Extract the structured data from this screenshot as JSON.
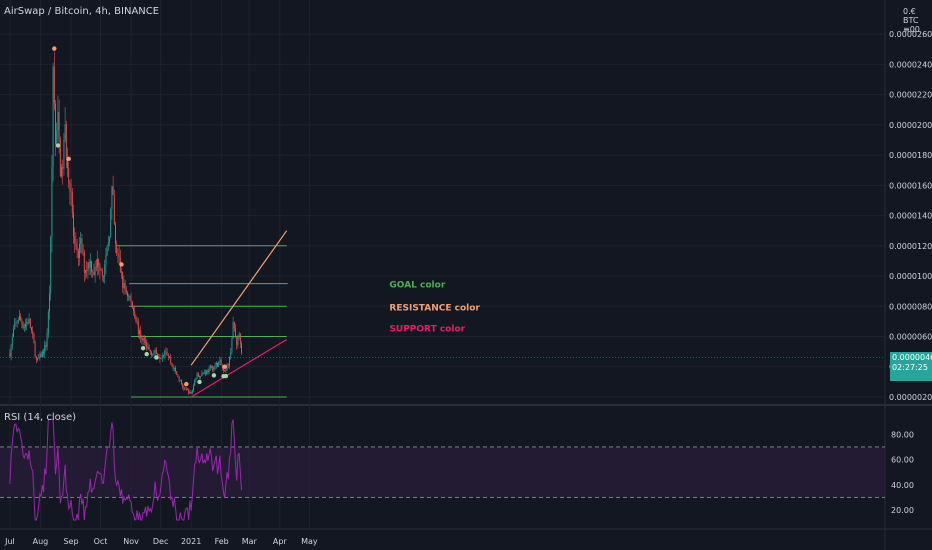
{
  "header": {
    "title": "AirSwap / Bitcoin, 4h, BINANCE",
    "currency": "0.€ BTC ≡00"
  },
  "rsi_panel": {
    "title": "RSI (14, close)"
  },
  "price_box": {
    "price": "0.00000461",
    "countdown": "02:27:25"
  },
  "colors": {
    "background": "#131722",
    "bull": "#26a69a",
    "bear": "#ef5350",
    "goal": "#4caf50",
    "resistance": "#f0a070",
    "support": "#e91e63",
    "rsi": "#9c27b0",
    "rsi_band": "#2a1e3a"
  },
  "chart_data": [
    {
      "type": "candlestick",
      "title": "AirSwap / Bitcoin, 4h, BINANCE",
      "x_tick_labels": [
        "Jul",
        "Aug",
        "Sep",
        "Oct",
        "Nov",
        "Dec",
        "2021",
        "Feb",
        "Mar",
        "Apr",
        "May"
      ],
      "y_tick_labels": [
        "0.00000200",
        "0.00000400",
        "0.00000600",
        "0.00000800",
        "0.00001000",
        "0.00001200",
        "0.00001400",
        "0.00001600",
        "0.00001800",
        "0.00002000",
        "0.00002200",
        "0.00002400",
        "0.00002600"
      ],
      "ylim": [
        1.6e-06,
        2.76e-05
      ],
      "last_price": 4.61e-06,
      "price_path": [
        {
          "x": "2020-07-01",
          "y": 4.9e-06
        },
        {
          "x": "2020-07-05",
          "y": 6.5e-06
        },
        {
          "x": "2020-07-10",
          "y": 7.3e-06
        },
        {
          "x": "2020-07-15",
          "y": 6.7e-06
        },
        {
          "x": "2020-07-20",
          "y": 7.1e-06
        },
        {
          "x": "2020-07-24",
          "y": 6e-06
        },
        {
          "x": "2020-07-28",
          "y": 4.3e-06
        },
        {
          "x": "2020-08-03",
          "y": 4.9e-06
        },
        {
          "x": "2020-08-07",
          "y": 5.5e-06
        },
        {
          "x": "2020-08-10",
          "y": 8.5e-06
        },
        {
          "x": "2020-08-12",
          "y": 1.35e-05
        },
        {
          "x": "2020-08-14",
          "y": 2.48e-05
        },
        {
          "x": "2020-08-16",
          "y": 1.85e-05
        },
        {
          "x": "2020-08-19",
          "y": 2.02e-05
        },
        {
          "x": "2020-08-22",
          "y": 1.62e-05
        },
        {
          "x": "2020-08-26",
          "y": 1.95e-05
        },
        {
          "x": "2020-08-29",
          "y": 1.71e-05
        },
        {
          "x": "2020-09-01",
          "y": 1.58e-05
        },
        {
          "x": "2020-09-04",
          "y": 1.2e-05
        },
        {
          "x": "2020-09-07",
          "y": 1.12e-05
        },
        {
          "x": "2020-09-11",
          "y": 1.21e-05
        },
        {
          "x": "2020-09-15",
          "y": 1.04e-05
        },
        {
          "x": "2020-09-20",
          "y": 1.1e-05
        },
        {
          "x": "2020-09-25",
          "y": 1.02e-05
        },
        {
          "x": "2020-09-29",
          "y": 1.11e-05
        },
        {
          "x": "2020-10-03",
          "y": 1.03e-05
        },
        {
          "x": "2020-10-06",
          "y": 1.06e-05
        },
        {
          "x": "2020-10-10",
          "y": 1.3e-05
        },
        {
          "x": "2020-10-13",
          "y": 1.58e-05
        },
        {
          "x": "2020-10-16",
          "y": 1.19e-05
        },
        {
          "x": "2020-10-20",
          "y": 1.09e-05
        },
        {
          "x": "2020-10-24",
          "y": 9.3e-06
        },
        {
          "x": "2020-10-28",
          "y": 8.9e-06
        },
        {
          "x": "2020-11-01",
          "y": 8.2e-06
        },
        {
          "x": "2020-11-05",
          "y": 7.5e-06
        },
        {
          "x": "2020-11-09",
          "y": 6.2e-06
        },
        {
          "x": "2020-11-14",
          "y": 5.7e-06
        },
        {
          "x": "2020-11-20",
          "y": 5e-06
        },
        {
          "x": "2020-11-26",
          "y": 4.9e-06
        },
        {
          "x": "2020-12-01",
          "y": 4.7e-06
        },
        {
          "x": "2020-12-06",
          "y": 5.2e-06
        },
        {
          "x": "2020-12-12",
          "y": 4.2e-06
        },
        {
          "x": "2020-12-18",
          "y": 3.4e-06
        },
        {
          "x": "2020-12-24",
          "y": 2.6e-06
        },
        {
          "x": "2021-01-01",
          "y": 2.2e-06
        },
        {
          "x": "2021-01-06",
          "y": 3.4e-06
        },
        {
          "x": "2021-01-14",
          "y": 3.6e-06
        },
        {
          "x": "2021-01-22",
          "y": 3.9e-06
        },
        {
          "x": "2021-01-30",
          "y": 4.3e-06
        },
        {
          "x": "2021-02-04",
          "y": 3.5e-06
        },
        {
          "x": "2021-02-09",
          "y": 4.5e-06
        },
        {
          "x": "2021-02-13",
          "y": 6.9e-06
        },
        {
          "x": "2021-02-16",
          "y": 5.5e-06
        },
        {
          "x": "2021-02-19",
          "y": 6.3e-06
        },
        {
          "x": "2021-02-22",
          "y": 4.6e-06
        }
      ],
      "horizontal_lines": [
        {
          "y": 1.2e-05,
          "x0": "2020-10-18",
          "x1": "2021-04-08"
        },
        {
          "y": 9.5e-06,
          "x0": "2020-10-30",
          "x1": "2021-04-09"
        },
        {
          "y": 8e-06,
          "x0": "2020-10-30",
          "x1": "2021-04-08"
        },
        {
          "y": 6e-06,
          "x0": "2020-11-01",
          "x1": "2021-04-08"
        },
        {
          "y": 2e-06,
          "x0": "2020-11-01",
          "x1": "2021-04-08"
        }
      ],
      "trend_lines": [
        {
          "name": "RESISTANCE",
          "x0": "2021-01-01",
          "y0": 4.1e-06,
          "x1": "2021-04-08",
          "y1": 1.3e-05
        },
        {
          "name": "SUPPORT",
          "x0": "2021-01-01",
          "y0": 2e-06,
          "x1": "2021-04-08",
          "y1": 5.8e-06
        }
      ],
      "annotations": [
        {
          "text": "GOAL color",
          "x": "2021-02-19",
          "y": 9.5e-06
        },
        {
          "text": "RESISTANCE color",
          "x": "2021-02-19",
          "y": 8e-06
        },
        {
          "text": "SUPPORT color",
          "x": "2021-02-19",
          "y": 6.6e-06
        }
      ],
      "grid": true
    },
    {
      "type": "line",
      "title": "RSI (14, close)",
      "y_tick_labels": [
        "20.00",
        "40.00",
        "60.00",
        "80.00"
      ],
      "ylim": [
        8,
        98
      ],
      "levels": [
        70,
        30
      ],
      "band": [
        30,
        70
      ]
    }
  ]
}
